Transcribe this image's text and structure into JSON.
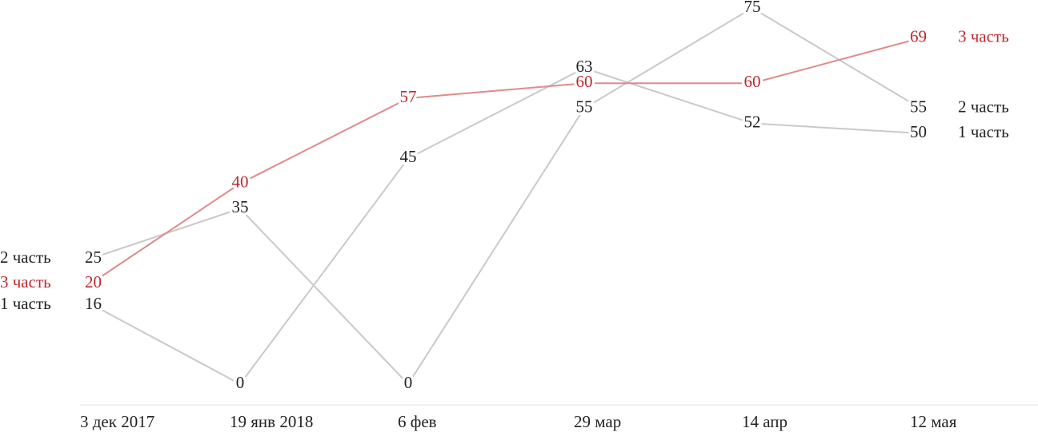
{
  "chart_data": {
    "type": "line",
    "categories": [
      "3 дек 2017",
      "19 янв 2018",
      "6 фев",
      "29 мар",
      "14 апр",
      "12 мая"
    ],
    "series": [
      {
        "name": "1 часть",
        "color": "#c9c9c9",
        "values": [
          16,
          0,
          45,
          63,
          52,
          50
        ]
      },
      {
        "name": "2 часть",
        "color": "#c9c9c9",
        "values": [
          25,
          35,
          0,
          55,
          75,
          55
        ]
      },
      {
        "name": "3 часть",
        "color": "#c0272d",
        "values": [
          20,
          40,
          57,
          60,
          60,
          69
        ]
      }
    ],
    "ylim": [
      0,
      75
    ]
  }
}
